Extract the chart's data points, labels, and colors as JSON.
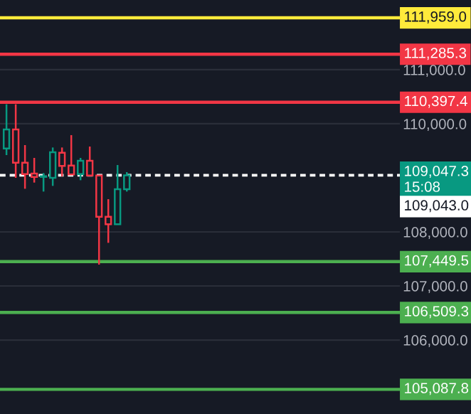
{
  "chart_data": {
    "type": "candlestick",
    "categories": [
      null,
      null,
      null,
      null,
      null,
      null,
      null,
      null,
      null,
      null,
      null,
      null,
      null,
      null,
      null,
      null,
      null,
      null,
      null,
      null,
      null,
      null,
      null,
      null,
      null,
      null,
      null,
      null,
      null,
      null,
      null,
      null,
      null,
      null,
      null,
      null,
      null,
      null,
      null,
      null,
      null,
      null,
      null
    ],
    "ohlc": [
      [
        109544,
        110360,
        109421,
        109895
      ],
      [
        109895,
        110360,
        109000,
        109281
      ],
      [
        109281,
        109605,
        108798,
        109070
      ],
      [
        109079,
        109368,
        108912,
        109018
      ],
      [
        109018,
        109088,
        108746,
        109030
      ],
      [
        109000,
        109561,
        108851,
        109474
      ],
      [
        109465,
        109561,
        109026,
        109219
      ],
      [
        109228,
        109790,
        109061,
        109061
      ],
      [
        109070,
        109368,
        108956,
        109316
      ],
      [
        109316,
        109579,
        109026,
        109044
      ],
      [
        109044,
        109044,
        107395,
        108281
      ],
      [
        108281,
        108605,
        107798,
        108140
      ],
      [
        108140,
        109237,
        108140,
        108789
      ],
      [
        108789,
        109105,
        108746,
        109047
      ],
      null,
      null,
      null,
      null,
      null,
      null,
      null,
      null,
      null,
      null,
      null,
      null,
      null,
      null,
      null,
      null,
      null,
      null,
      null,
      null,
      null,
      null,
      null,
      null,
      null,
      null,
      null,
      null,
      null
    ],
    "colors": [
      "#089981",
      "#f23645",
      "#f23645",
      "#f23645",
      "#089981",
      "#089981",
      "#f23645",
      "#f23645",
      "#089981",
      "#f23645",
      "#f23645",
      "#f23645",
      "#089981",
      "#089981",
      null,
      null,
      null,
      null,
      null,
      null,
      null,
      null,
      null,
      null,
      null,
      null,
      null,
      null,
      null,
      null,
      null,
      null,
      null,
      null,
      null,
      null,
      null,
      null,
      null,
      null,
      null,
      null,
      null
    ],
    "ylim": [
      104632,
      112289
    ],
    "yticks": [
      {
        "value": 106000,
        "label": "106,000.0"
      },
      {
        "value": 107000,
        "label": "107,000.0"
      },
      {
        "value": 108000,
        "label": "108,000.0"
      },
      {
        "value": 110000,
        "label": "110,000.0"
      },
      {
        "value": 111000,
        "label": "111,000.0"
      }
    ],
    "grid": "y",
    "tick_labels": "y",
    "ref_lines": [
      {
        "axis": "y",
        "value": 111959.0,
        "label": "111,959.0",
        "color": "#ffeb3b"
      },
      {
        "axis": "y",
        "value": 111285.3,
        "label": "111,285.3",
        "color": "#f23645"
      },
      {
        "axis": "y",
        "value": 110397.4,
        "label": "110,397.4",
        "color": "#f23645"
      },
      {
        "axis": "y",
        "value": 109047.3,
        "label": "109,047.3\n15:08",
        "color": "#ffffff",
        "line_style": "dashed"
      },
      {
        "axis": "y",
        "value": 107449.5,
        "label": "107,449.5",
        "color": "#4caf50"
      },
      {
        "axis": "y",
        "value": 106509.3,
        "label": "106,509.3",
        "color": "#4caf50"
      },
      {
        "axis": "y",
        "value": 105087.8,
        "label": "105,087.8",
        "color": "#4caf50"
      }
    ],
    "annotations": [
      "109,043.0"
    ]
  }
}
